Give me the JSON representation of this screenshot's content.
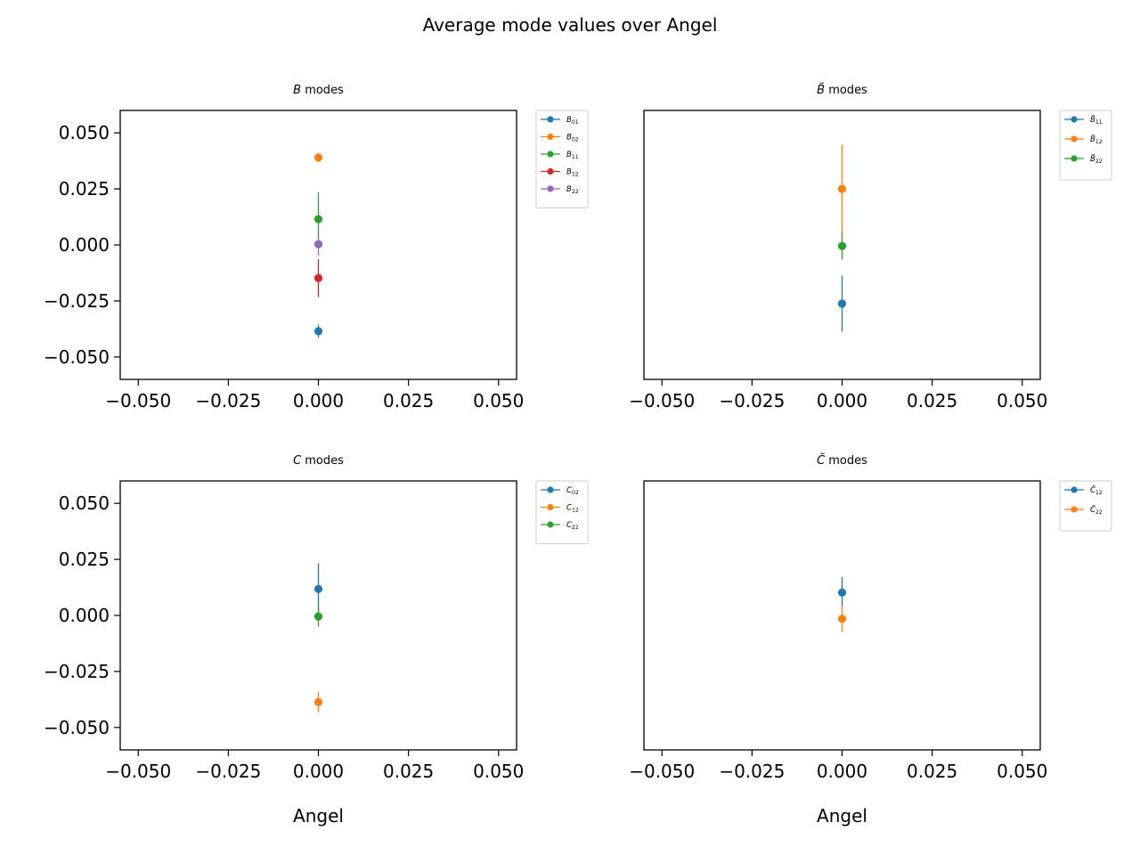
{
  "figure": {
    "suptitle": "Average mode values over Angel"
  },
  "chart_data": [
    {
      "type": "scatter",
      "title_sym": "B",
      "title_tilde": false,
      "title_rest": " modes",
      "xlabel": "",
      "xlim": [
        -0.055,
        0.055
      ],
      "ylim": [
        -0.06,
        0.06
      ],
      "xticks": [
        "−0.050",
        "−0.025",
        "0.000",
        "0.025",
        "0.050"
      ],
      "xtick_values": [
        -0.05,
        -0.025,
        0,
        0.025,
        0.05
      ],
      "yticks": [
        "0.050",
        "0.025",
        "0.000",
        "−0.025",
        "−0.050"
      ],
      "ytick_values": [
        0.05,
        0.025,
        0,
        -0.025,
        -0.05
      ],
      "show_yticks": true,
      "legend_placement": "outside-upper-right",
      "grid": false,
      "series": [
        {
          "name": "B01",
          "sym": "B",
          "tilde": false,
          "sub": "01",
          "color": "#1f77b4",
          "x": 0,
          "y": -0.0385,
          "err": 0.003
        },
        {
          "name": "B02",
          "sym": "B",
          "tilde": false,
          "sub": "02",
          "color": "#ff7f0e",
          "x": 0,
          "y": 0.039,
          "err": 0.002
        },
        {
          "name": "B11",
          "sym": "B",
          "tilde": false,
          "sub": "11",
          "color": "#2ca02c",
          "x": 0,
          "y": 0.0115,
          "err": 0.012
        },
        {
          "name": "B12",
          "sym": "B",
          "tilde": false,
          "sub": "12",
          "color": "#d62728",
          "x": 0,
          "y": -0.0148,
          "err": 0.0085
        },
        {
          "name": "B22",
          "sym": "B",
          "tilde": false,
          "sub": "22",
          "color": "#9467bd",
          "x": 0,
          "y": 0.0003,
          "err": 0.005
        }
      ]
    },
    {
      "type": "scatter",
      "title_sym": "B",
      "title_tilde": true,
      "title_rest": " modes",
      "xlabel": "",
      "xlim": [
        -0.055,
        0.055
      ],
      "ylim": [
        -0.06,
        0.06
      ],
      "xticks": [
        "−0.050",
        "−0.025",
        "0.000",
        "0.025",
        "0.050"
      ],
      "xtick_values": [
        -0.05,
        -0.025,
        0,
        0.025,
        0.05
      ],
      "yticks": [],
      "ytick_values": [],
      "show_yticks": false,
      "legend_placement": "outside-upper-right",
      "grid": false,
      "series": [
        {
          "name": "B̃11",
          "sym": "B",
          "tilde": true,
          "sub": "11",
          "color": "#1f77b4",
          "x": 0,
          "y": -0.0262,
          "err": 0.0125
        },
        {
          "name": "B̃12",
          "sym": "B",
          "tilde": true,
          "sub": "12",
          "color": "#ff7f0e",
          "x": 0,
          "y": 0.025,
          "err": 0.0198
        },
        {
          "name": "B̃22",
          "sym": "B",
          "tilde": true,
          "sub": "22",
          "color": "#2ca02c",
          "x": 0,
          "y": -0.0005,
          "err": 0.006
        }
      ]
    },
    {
      "type": "scatter",
      "title_sym": "C",
      "title_tilde": false,
      "title_rest": " modes",
      "xlabel": "Angel",
      "xlim": [
        -0.055,
        0.055
      ],
      "ylim": [
        -0.06,
        0.06
      ],
      "xticks": [
        "−0.050",
        "−0.025",
        "0.000",
        "0.025",
        "0.050"
      ],
      "xtick_values": [
        -0.05,
        -0.025,
        0,
        0.025,
        0.05
      ],
      "yticks": [
        "0.050",
        "0.025",
        "0.000",
        "−0.025",
        "−0.050"
      ],
      "ytick_values": [
        0.05,
        0.025,
        0,
        -0.025,
        -0.05
      ],
      "show_yticks": true,
      "legend_placement": "outside-upper-right",
      "grid": false,
      "series": [
        {
          "name": "C02",
          "sym": "C",
          "tilde": false,
          "sub": "02",
          "color": "#1f77b4",
          "x": 0,
          "y": 0.0118,
          "err": 0.0115
        },
        {
          "name": "C12",
          "sym": "C",
          "tilde": false,
          "sub": "12",
          "color": "#ff7f0e",
          "x": 0,
          "y": -0.0387,
          "err": 0.0045
        },
        {
          "name": "C22",
          "sym": "C",
          "tilde": false,
          "sub": "22",
          "color": "#2ca02c",
          "x": 0,
          "y": -0.0005,
          "err": 0.0045
        }
      ]
    },
    {
      "type": "scatter",
      "title_sym": "C",
      "title_tilde": true,
      "title_rest": " modes",
      "xlabel": "Angel",
      "xlim": [
        -0.055,
        0.055
      ],
      "ylim": [
        -0.06,
        0.06
      ],
      "xticks": [
        "−0.050",
        "−0.025",
        "0.000",
        "0.025",
        "0.050"
      ],
      "xtick_values": [
        -0.05,
        -0.025,
        0,
        0.025,
        0.05
      ],
      "yticks": [],
      "ytick_values": [],
      "show_yticks": false,
      "legend_placement": "outside-upper-right",
      "grid": false,
      "series": [
        {
          "name": "C̃12",
          "sym": "C",
          "tilde": true,
          "sub": "12",
          "color": "#1f77b4",
          "x": 0,
          "y": 0.0102,
          "err": 0.007
        },
        {
          "name": "C̃22",
          "sym": "C",
          "tilde": true,
          "sub": "22",
          "color": "#ff7f0e",
          "x": 0,
          "y": -0.0015,
          "err": 0.006
        }
      ]
    }
  ]
}
